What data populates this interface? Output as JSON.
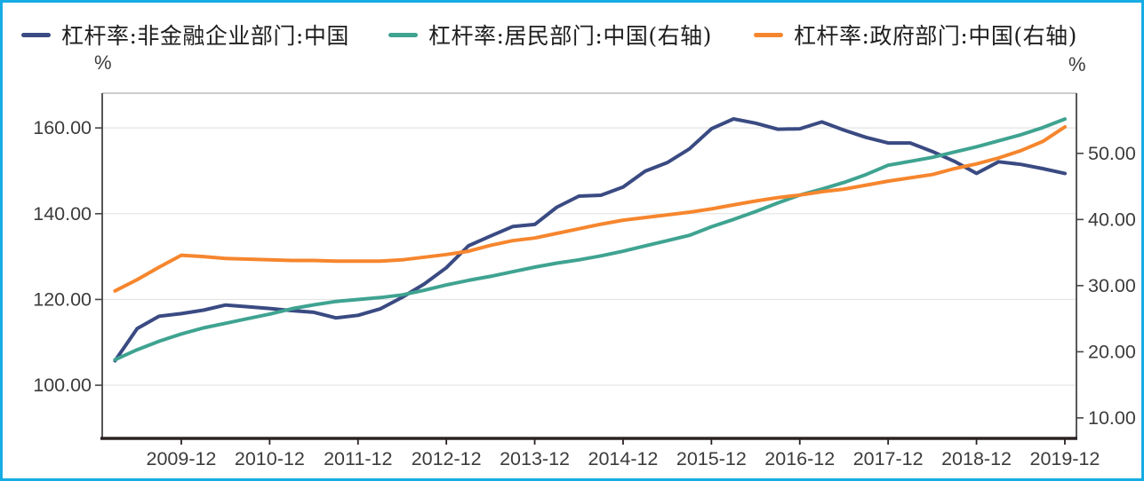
{
  "frame": {
    "border_color": "#17ACE3",
    "background": "#FFFFFF"
  },
  "legend": {
    "items": [
      {
        "label": "杠杆率:非金融企业部门:中国",
        "color": "#3A4A82",
        "axis": "left"
      },
      {
        "label": "杠杆率:居民部门:中国(右轴)",
        "color": "#3FA391",
        "axis": "right"
      },
      {
        "label": "杠杆率:政府部门:中国(右轴)",
        "color": "#F6862E",
        "axis": "right"
      }
    ]
  },
  "axes": {
    "left_unit": "%",
    "right_unit": "%"
  },
  "chart_data": {
    "type": "line",
    "title": "",
    "xlabel": "",
    "ylabel_left": "%",
    "ylabel_right": "%",
    "grid": "horizontal-left-ticks-only",
    "legend_position": "top",
    "x": [
      "2009-03",
      "2009-06",
      "2009-09",
      "2009-12",
      "2010-03",
      "2010-06",
      "2010-09",
      "2010-12",
      "2011-03",
      "2011-06",
      "2011-09",
      "2011-12",
      "2012-03",
      "2012-06",
      "2012-09",
      "2012-12",
      "2013-03",
      "2013-06",
      "2013-09",
      "2013-12",
      "2014-03",
      "2014-06",
      "2014-09",
      "2014-12",
      "2015-03",
      "2015-06",
      "2015-09",
      "2015-12",
      "2016-03",
      "2016-06",
      "2016-09",
      "2016-12",
      "2017-03",
      "2017-06",
      "2017-09",
      "2017-12",
      "2018-03",
      "2018-06",
      "2018-09",
      "2018-12",
      "2019-03",
      "2019-06",
      "2019-09",
      "2019-12"
    ],
    "x_tick_labels": [
      "2009-12",
      "2010-12",
      "2011-12",
      "2012-12",
      "2013-12",
      "2014-12",
      "2015-12",
      "2016-12",
      "2017-12",
      "2018-12",
      "2019-12"
    ],
    "left_axis": {
      "unit": "%",
      "ticks": [
        160,
        140,
        120,
        100
      ],
      "tick_labels": [
        "160.00",
        "140.00",
        "120.00",
        "100.00"
      ],
      "max": 168.1,
      "min": 87.6
    },
    "right_axis": {
      "unit": "%",
      "ticks": [
        50,
        40,
        30,
        20,
        10
      ],
      "tick_labels": [
        "50.00",
        "40.00",
        "30.00",
        "20.00",
        "10.00"
      ],
      "max": 59.1,
      "min": 6.9
    },
    "series": [
      {
        "name": "杠杆率:非金融企业部门:中国",
        "key": "corporate",
        "axis": "left",
        "color": "#3A4A82",
        "values": [
          105.7,
          113.2,
          116.1,
          116.7,
          117.5,
          118.7,
          118.3,
          117.9,
          117.4,
          117.0,
          115.7,
          116.3,
          117.8,
          120.5,
          123.6,
          127.4,
          132.5,
          134.8,
          137.0,
          137.5,
          141.5,
          144.1,
          144.3,
          146.2,
          149.9,
          151.9,
          155.1,
          159.8,
          162.1,
          161.1,
          159.7,
          159.8,
          161.4,
          159.5,
          157.8,
          156.5,
          156.5,
          154.5,
          152.2,
          149.4,
          152.1,
          151.5,
          150.5,
          149.4
        ]
      },
      {
        "name": "杠杆率:居民部门:中国(右轴)",
        "key": "household",
        "axis": "right",
        "color": "#3FA391",
        "values": [
          18.8,
          20.3,
          21.6,
          22.7,
          23.6,
          24.3,
          25.0,
          25.7,
          26.5,
          27.1,
          27.6,
          27.9,
          28.2,
          28.6,
          29.3,
          30.1,
          30.8,
          31.4,
          32.1,
          32.8,
          33.4,
          33.9,
          34.5,
          35.2,
          36.0,
          36.8,
          37.6,
          38.9,
          40.0,
          41.2,
          42.5,
          43.7,
          44.6,
          45.6,
          46.8,
          48.2,
          48.8,
          49.4,
          50.2,
          51.0,
          51.9,
          52.8,
          53.9,
          55.2
        ]
      },
      {
        "name": "杠杆率:政府部门:中国(右轴)",
        "key": "government",
        "axis": "right",
        "color": "#F6862E",
        "values": [
          29.2,
          30.9,
          32.8,
          34.6,
          34.4,
          34.1,
          34.0,
          33.9,
          33.8,
          33.8,
          33.7,
          33.7,
          33.7,
          33.9,
          34.3,
          34.7,
          35.2,
          36.1,
          36.8,
          37.2,
          37.9,
          38.6,
          39.3,
          39.9,
          40.3,
          40.7,
          41.1,
          41.6,
          42.2,
          42.8,
          43.3,
          43.7,
          44.2,
          44.6,
          45.2,
          45.8,
          46.3,
          46.8,
          47.7,
          48.4,
          49.3,
          50.4,
          51.8,
          54.0
        ]
      }
    ]
  },
  "style": {
    "grid_color": "#E3E3E3",
    "axis_side_color": "#454545",
    "axis_top_color": "#9A9A9A",
    "axis_bottom_color": "#2B2222",
    "tick_text_color": "#3C3C3C",
    "line_width": 4
  }
}
